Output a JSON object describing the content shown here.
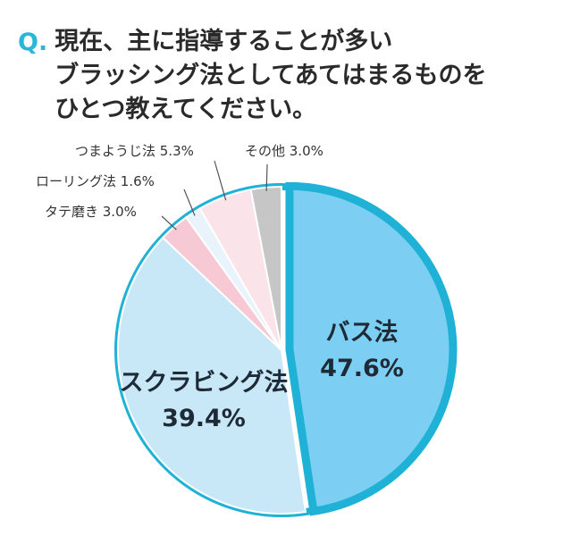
{
  "question": {
    "mark": "Q.",
    "lines": [
      "現在、主に指導することが多い",
      "ブラッシング法としてあてはまるものを",
      "ひとつ教えてください。"
    ]
  },
  "chart_data": {
    "type": "pie",
    "slices": [
      {
        "name": "バス法",
        "value": 47.6,
        "label_pct": "47.6%",
        "color": "#7ccff2",
        "label": "inside"
      },
      {
        "name": "スクラビング法",
        "value": 39.4,
        "label_pct": "39.4%",
        "color": "#c8e8f7",
        "label": "inside"
      },
      {
        "name": "タテ磨き",
        "value": 3.0,
        "label_pct": "3.0%",
        "color": "#f6c9d4",
        "label": "outside"
      },
      {
        "name": "ローリング法",
        "value": 1.6,
        "label_pct": "1.6%",
        "color": "#e8f3fb",
        "label": "outside"
      },
      {
        "name": "つまようじ法",
        "value": 5.3,
        "label_pct": "5.3%",
        "color": "#fbe3ea",
        "label": "outside"
      },
      {
        "name": "その他",
        "value": 3.0,
        "label_pct": "3.0%",
        "color": "#c6c6c6",
        "label": "outside"
      }
    ],
    "highlight": "バス法",
    "outline_color": "#1fb2d6"
  }
}
